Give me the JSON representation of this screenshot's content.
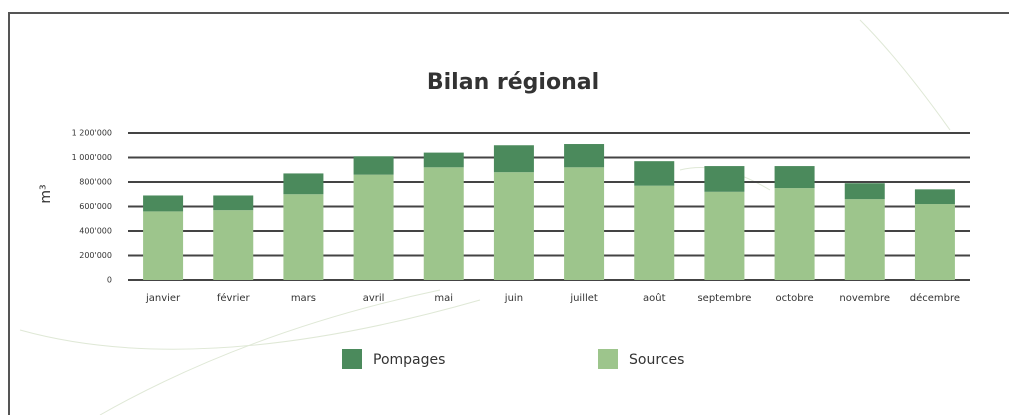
{
  "chart_data": {
    "type": "stacked-bar",
    "title": "Bilan régional",
    "y_label": "m³",
    "categories": [
      "janvier",
      "février",
      "mars",
      "avril",
      "mai",
      "juin",
      "juillet",
      "août",
      "septembre",
      "octobre",
      "novembre",
      "décembre"
    ],
    "series": [
      {
        "name": "Pompages",
        "color": "#4b8a5c",
        "values": [
          130000,
          120000,
          170000,
          150000,
          120000,
          220000,
          190000,
          200000,
          210000,
          180000,
          130000,
          120000
        ]
      },
      {
        "name": "Sources",
        "color": "#9dc58c",
        "values": [
          560000,
          570000,
          700000,
          860000,
          920000,
          880000,
          920000,
          770000,
          720000,
          750000,
          660000,
          620000
        ]
      }
    ],
    "ylim": [
      0,
      1200000
    ],
    "yticks": [
      0,
      {
        "value": 200000,
        "label": "200'000"
      },
      {
        "value": 400000,
        "label": "400'000"
      },
      {
        "value": 600000,
        "label": "600'000"
      },
      {
        "value": 800000,
        "label": "800'000"
      },
      {
        "value": 1000000,
        "label": "1 000'000"
      },
      {
        "value": 1200000,
        "label": "1 200'000"
      }
    ],
    "grid": true
  }
}
